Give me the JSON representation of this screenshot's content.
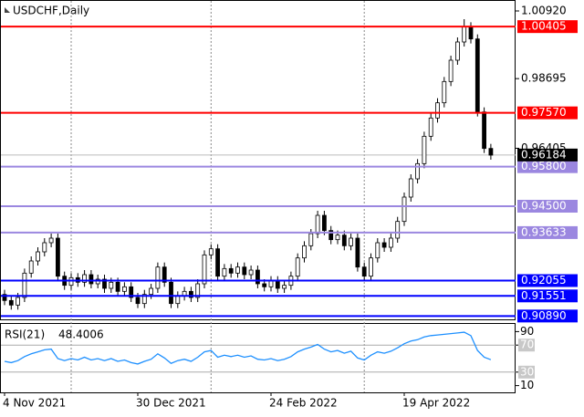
{
  "chart_data": {
    "type": "candlestick",
    "title": "USDCHF,Daily",
    "categories": [
      "4 Nov 2021",
      null,
      null,
      null,
      null,
      null,
      null,
      null,
      null,
      null,
      null,
      null,
      null,
      null,
      null,
      null,
      null,
      null,
      null,
      null,
      "30 Dec 2021",
      null,
      null,
      null,
      null,
      null,
      null,
      null,
      null,
      null,
      null,
      null,
      null,
      null,
      null,
      null,
      null,
      null,
      null,
      null,
      "24 Feb 2022",
      null,
      null,
      null,
      null,
      null,
      null,
      null,
      null,
      null,
      null,
      null,
      null,
      null,
      null,
      null,
      null,
      null,
      null,
      null,
      "19 Apr 2022",
      null,
      null,
      null,
      null,
      null,
      null,
      null,
      null,
      null,
      null,
      null,
      null,
      null
    ],
    "open": [
      0.916,
      0.914,
      0.9125,
      0.915,
      0.923,
      0.927,
      0.93,
      0.933,
      0.9345,
      0.922,
      0.919,
      0.9215,
      0.92,
      0.9225,
      0.9195,
      0.921,
      0.918,
      0.92,
      0.917,
      0.9185,
      0.915,
      0.913,
      0.916,
      0.918,
      0.925,
      0.92,
      0.913,
      0.9155,
      0.917,
      0.915,
      0.9195,
      0.929,
      0.931,
      0.922,
      0.9245,
      0.923,
      0.925,
      0.9225,
      0.924,
      0.9195,
      0.9185,
      0.9205,
      0.918,
      0.919,
      0.922,
      0.928,
      0.932,
      0.936,
      0.942,
      0.937,
      0.934,
      0.9355,
      0.932,
      0.9345,
      0.925,
      0.922,
      0.928,
      0.933,
      0.9315,
      0.9345,
      0.94,
      0.948,
      0.954,
      0.959,
      0.968,
      0.974,
      0.979,
      0.986,
      0.993,
      0.999,
      1.004,
      1.0,
      0.976,
      0.964
    ],
    "high": [
      0.9175,
      0.9155,
      0.9165,
      0.9245,
      0.9285,
      0.9315,
      0.9345,
      0.936,
      0.936,
      0.9235,
      0.923,
      0.923,
      0.924,
      0.924,
      0.9225,
      0.9225,
      0.9215,
      0.9215,
      0.92,
      0.92,
      0.9165,
      0.9175,
      0.9195,
      0.9265,
      0.9265,
      0.9215,
      0.917,
      0.9185,
      0.9185,
      0.921,
      0.9305,
      0.9325,
      0.9325,
      0.926,
      0.926,
      0.9265,
      0.9265,
      0.9255,
      0.9255,
      0.921,
      0.922,
      0.922,
      0.9205,
      0.9235,
      0.9295,
      0.9335,
      0.9375,
      0.9435,
      0.9435,
      0.9385,
      0.937,
      0.937,
      0.936,
      0.936,
      0.9265,
      0.9295,
      0.9345,
      0.9345,
      0.936,
      0.9415,
      0.9495,
      0.9555,
      0.9605,
      0.9695,
      0.9755,
      0.9805,
      0.9875,
      0.9945,
      1.0005,
      1.0065,
      1.0055,
      1.0015,
      0.9775,
      0.9655
    ],
    "low": [
      0.9125,
      0.911,
      0.911,
      0.9135,
      0.9215,
      0.9255,
      0.9285,
      0.9315,
      0.9205,
      0.9175,
      0.9175,
      0.9185,
      0.9185,
      0.918,
      0.918,
      0.9165,
      0.9165,
      0.9155,
      0.9155,
      0.9135,
      0.9115,
      0.9115,
      0.9145,
      0.9165,
      0.9185,
      0.9115,
      0.9115,
      0.914,
      0.9135,
      0.9135,
      0.918,
      0.9275,
      0.9205,
      0.9205,
      0.9215,
      0.9215,
      0.921,
      0.921,
      0.918,
      0.917,
      0.917,
      0.9165,
      0.9165,
      0.9175,
      0.9205,
      0.9265,
      0.9305,
      0.9345,
      0.9355,
      0.9325,
      0.9325,
      0.9305,
      0.9305,
      0.9235,
      0.9205,
      0.9205,
      0.9265,
      0.93,
      0.93,
      0.933,
      0.9385,
      0.9465,
      0.9525,
      0.9575,
      0.9665,
      0.9725,
      0.9775,
      0.9845,
      0.9915,
      0.9975,
      0.9985,
      0.9745,
      0.9625,
      0.9603
    ],
    "close": [
      0.914,
      0.9125,
      0.915,
      0.923,
      0.927,
      0.93,
      0.933,
      0.9345,
      0.922,
      0.919,
      0.9215,
      0.92,
      0.9225,
      0.9195,
      0.921,
      0.918,
      0.92,
      0.917,
      0.9185,
      0.915,
      0.913,
      0.916,
      0.918,
      0.925,
      0.92,
      0.913,
      0.9155,
      0.917,
      0.915,
      0.9195,
      0.929,
      0.931,
      0.922,
      0.9245,
      0.923,
      0.925,
      0.9225,
      0.924,
      0.9195,
      0.9185,
      0.9205,
      0.918,
      0.919,
      0.922,
      0.928,
      0.932,
      0.936,
      0.942,
      0.937,
      0.934,
      0.9355,
      0.932,
      0.9345,
      0.925,
      0.922,
      0.928,
      0.933,
      0.9315,
      0.9345,
      0.94,
      0.948,
      0.954,
      0.959,
      0.968,
      0.974,
      0.979,
      0.986,
      0.993,
      0.999,
      1.004,
      1.0,
      0.976,
      0.964,
      0.9618
    ],
    "up_color": "#ffffff",
    "down_color": "#000000",
    "wick_color": "#000000",
    "ylim": [
      0.9078,
      1.0128
    ],
    "yticks": [
      {
        "value": 1.0092,
        "label": "1.00920"
      },
      {
        "value": 0.98695,
        "label": "0.98695"
      },
      {
        "value": 0.96405,
        "label": "0.96405"
      }
    ],
    "levels": [
      {
        "value": 1.00405,
        "label": "1.00405",
        "color": "#ff0000"
      },
      {
        "value": 0.9757,
        "label": "0.97570",
        "color": "#ff0000"
      },
      {
        "value": 0.958,
        "label": "0.95800",
        "color": "#9b87e0"
      },
      {
        "value": 0.945,
        "label": "0.94500",
        "color": "#9b87e0"
      },
      {
        "value": 0.93633,
        "label": "0.93633",
        "color": "#9b87e0"
      },
      {
        "value": 0.92055,
        "label": "0.92055",
        "color": "#0000ff"
      },
      {
        "value": 0.91551,
        "label": "0.91551",
        "color": "#0000ff"
      },
      {
        "value": 0.9089,
        "label": "0.90890",
        "color": "#0000ff"
      }
    ],
    "last_price": 0.96184,
    "rsi": {
      "name": "RSI(21)",
      "last": 48.4006,
      "color": "#1e90ff",
      "values": [
        46,
        44,
        47,
        53,
        57,
        60,
        63,
        64,
        50,
        47,
        50,
        48,
        52,
        48,
        50,
        47,
        50,
        46,
        48,
        44,
        42,
        46,
        49,
        57,
        51,
        43,
        47,
        49,
        46,
        52,
        60,
        62,
        52,
        55,
        53,
        55,
        52,
        54,
        49,
        48,
        50,
        47,
        49,
        53,
        60,
        64,
        67,
        71,
        64,
        60,
        62,
        58,
        61,
        51,
        48,
        55,
        60,
        58,
        61,
        66,
        72,
        76,
        78,
        82,
        84,
        85,
        86,
        87,
        88,
        89,
        84,
        62,
        52,
        48.4006
      ],
      "ylim": [
        0,
        100
      ],
      "yticks": [
        10,
        30,
        70,
        90
      ],
      "levels": [
        30,
        70
      ]
    }
  }
}
